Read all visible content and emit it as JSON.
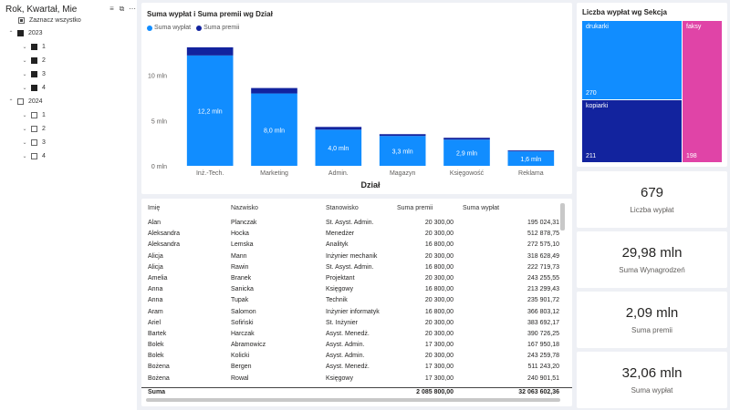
{
  "slicer": {
    "title": "Rok, Kwartał, Mie",
    "select_all": "Zaznacz wszystko",
    "items": [
      {
        "label": "2023",
        "level": 0,
        "state": "on",
        "expand": "⌃"
      },
      {
        "label": "1",
        "level": 1,
        "state": "on",
        "expand": "⌄"
      },
      {
        "label": "2",
        "level": 1,
        "state": "on",
        "expand": "⌄"
      },
      {
        "label": "3",
        "level": 1,
        "state": "on",
        "expand": "⌄"
      },
      {
        "label": "4",
        "level": 1,
        "state": "on",
        "expand": "⌄"
      },
      {
        "label": "2024",
        "level": 0,
        "state": "off",
        "expand": "⌃"
      },
      {
        "label": "1",
        "level": 1,
        "state": "off",
        "expand": "⌄"
      },
      {
        "label": "2",
        "level": 1,
        "state": "off",
        "expand": "⌄"
      },
      {
        "label": "3",
        "level": 1,
        "state": "off",
        "expand": "⌄"
      },
      {
        "label": "4",
        "level": 1,
        "state": "off",
        "expand": "⌄"
      }
    ],
    "icons": [
      "filter-icon",
      "focus-mode-icon",
      "more-options-icon"
    ]
  },
  "bar_chart": {
    "title": "Suma wypłat i Suma premii wg Dział",
    "legend": [
      "Suma wypłat",
      "Suma premii"
    ]
  },
  "chart_data": {
    "type": "bar",
    "title": "Suma wypłat i Suma premii wg Dział",
    "xlabel": "Dział",
    "ylabel": "",
    "stacked": true,
    "categories": [
      "Inż.-Tech.",
      "Marketing",
      "Admin.",
      "Magazyn",
      "Księgowość",
      "Reklama"
    ],
    "series": [
      {
        "name": "Suma wypłat",
        "color": "#118DFF",
        "values": [
          12.2,
          8.0,
          4.0,
          3.3,
          2.9,
          1.6
        ],
        "labels": [
          "12,2 mln",
          "8,0 mln",
          "4,0 mln",
          "3,3 mln",
          "2,9 mln",
          "1,6 mln"
        ]
      },
      {
        "name": "Suma premii",
        "color": "#12239E",
        "values": [
          0.9,
          0.6,
          0.3,
          0.2,
          0.2,
          0.1
        ]
      }
    ],
    "ylim": [
      0,
      14
    ],
    "yticks": [
      0,
      5,
      10
    ],
    "ytick_labels": [
      "0 mln",
      "5 mln",
      "10 mln"
    ],
    "grid": false,
    "legend_position": "top-left"
  },
  "table": {
    "headers": [
      "Imię",
      "Nazwisko",
      "Stanowisko",
      "Suma premii",
      "Suma wypłat"
    ],
    "rows": [
      [
        "Alan",
        "Planczak",
        "St. Asyst. Admin.",
        "20 300,00",
        "195 024,31"
      ],
      [
        "Aleksandra",
        "Hocka",
        "Menedżer",
        "20 300,00",
        "512 878,75"
      ],
      [
        "Aleksandra",
        "Lemska",
        "Analityk",
        "16 800,00",
        "272 575,10"
      ],
      [
        "Alicja",
        "Mann",
        "Inżynier mechanik",
        "20 300,00",
        "318 628,49"
      ],
      [
        "Alicja",
        "Rawin",
        "St. Asyst. Admin.",
        "16 800,00",
        "222 719,73"
      ],
      [
        "Amelia",
        "Branek",
        "Projektant",
        "20 300,00",
        "243 255,55"
      ],
      [
        "Anna",
        "Sanicka",
        "Księgowy",
        "16 800,00",
        "213 299,43"
      ],
      [
        "Anna",
        "Tupak",
        "Technik",
        "20 300,00",
        "235 901,72"
      ],
      [
        "Aram",
        "Salomon",
        "Inżynier informatyk",
        "16 800,00",
        "366 803,12"
      ],
      [
        "Ariel",
        "Sofiński",
        "St. Inżynier",
        "20 300,00",
        "383 692,17"
      ],
      [
        "Bartek",
        "Harczak",
        "Asyst. Menedż.",
        "20 300,00",
        "390 726,25"
      ],
      [
        "Bolek",
        "Abramowicz",
        "Asyst. Admin.",
        "17 300,00",
        "167 950,18"
      ],
      [
        "Bolek",
        "Kolicki",
        "Asyst. Admin.",
        "20 300,00",
        "243 259,78"
      ],
      [
        "Bożena",
        "Bergen",
        "Asyst. Menedż.",
        "17 300,00",
        "511 243,20"
      ],
      [
        "Bożena",
        "Rowal",
        "Księgowy",
        "17 300,00",
        "240 901,51"
      ]
    ],
    "total": {
      "label": "Suma",
      "premii": "2 085 800,00",
      "wyplat": "32 063 602,36"
    }
  },
  "treemap": {
    "title": "Liczba wypłat wg Sekcja",
    "cells": [
      {
        "label": "drukarki",
        "value": "270",
        "color": "#118DFF"
      },
      {
        "label": "kopiarki",
        "value": "211",
        "color": "#12239E"
      },
      {
        "label": "faksy",
        "value": "198",
        "color": "#E044A7"
      }
    ]
  },
  "kpis": [
    {
      "value": "679",
      "label": "Liczba wypłat"
    },
    {
      "value": "29,98 mln",
      "label": "Suma Wynagrodzeń"
    },
    {
      "value": "2,09 mln",
      "label": "Suma premii"
    },
    {
      "value": "32,06 mln",
      "label": "Suma wypłat"
    }
  ]
}
